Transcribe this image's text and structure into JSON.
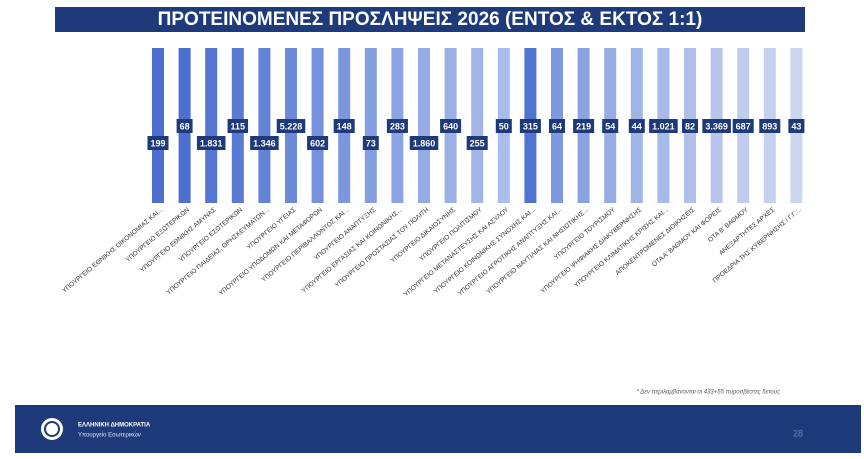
{
  "chart_data": {
    "type": "bar",
    "title": "ΠΡΟΤΕΙΝΟΜΕΝΕΣ ΠΡΟΣΛΗΨΕΙΣ 2026 (ΕΝΤΟΣ & ΕΚΤΟΣ 1:1)",
    "categories": [
      "ΥΠΟΥΡΓΕΙΟ ΕΘΝΙΚΗΣ ΟΙΚΟΝΟΜΙΑΣ ΚΑΙ...",
      "ΥΠΟΥΡΓΕΙΟ ΕΞΩΤΕΡΙΚΩΝ",
      "ΥΠΟΥΡΓΕΙΟ ΕΘΝΙΚΗΣ ΑΜΥΝΑΣ",
      "ΥΠΟΥΡΓΕΙΟ ΕΣΩΤΕΡΙΚΩΝ",
      "ΥΠΟΥΡΓΕΙΟ ΠΑΙΔΕΙΑΣ, ΘΡΗΣΚΕΥΜΑΤΩΝ...",
      "ΥΠΟΥΡΓΕΙΟ ΥΓΕΙΑΣ",
      "ΥΠΟΥΡΓΕΙΟ ΥΠΟΔΟΜΩΝ ΚΑΙ ΜΕΤΑΦΟΡΩΝ",
      "ΥΠΟΥΡΓΕΙΟ ΠΕΡΙΒΑΛΛΟΝΤΟΣ ΚΑΙ...",
      "ΥΠΟΥΡΓΕΙΟ ΑΝΑΠΤΥΞΗΣ",
      "ΥΠΟΥΡΓΕΙΟ ΕΡΓΑΣΙΑΣ ΚΑΙ ΚΟΙΝΩΝΙΚΗΣ...",
      "ΥΠΟΥΡΓΕΙΟ ΠΡΟΣΤΑΣΙΑΣ ΤΟΥ ΠΟΛΙΤΗ",
      "ΥΠΟΥΡΓΕΙΟ ΔΙΚΑΙΟΣΥΝΗΣ",
      "ΥΠΟΥΡΓΕΙΟ ΠΟΛΙΤΙΣΜΟΥ",
      "ΥΠΟΥΡΓΕΙΟ ΜΕΤΑΝΑΣΤΕΥΣΗΣ ΚΑΙ ΑΣΥΛΟΥ",
      "ΥΠΟΥΡΓΕΙΟ ΚΟΙΝΩΝΙΚΗΣ ΣΥΝΟΧΗΣ ΚΑΙ...",
      "ΥΠΟΥΡΓΕΙΟ ΑΓΡΟΤΙΚΗΣ ΑΝΑΠΤΥΞΗΣ ΚΑΙ...",
      "ΥΠΟΥΡΓΕΙΟ ΝΑΥΤΙΛΙΑΣ ΚΑΙ ΝΗΣΙΩΤΙΚΗΣ...",
      "ΥΠΟΥΡΓΕΙΟ ΤΟΥΡΙΣΜΟΥ",
      "ΥΠΟΥΡΓΕΙΟ ΨΗΦΙΑΚΗΣ ΔΙΑΚΥΒΕΡΝΗΣΗΣ",
      "ΥΠΟΥΡΓΕΙΟ ΚΛΙΜΑΤΙΚΗΣ ΚΡΙΣΗΣ ΚΑΙ...",
      "ΑΠΟΚΕΝΤΡΩΜΕΝΕΣ ΔΙΟΙΚΗΣΕΙΣ",
      "ΟΤΑ Α' ΒΑΘΜΟΥ ΚΑΙ ΦΟΡΕΙΣ",
      "ΟΤΑ Β' ΒΑΘΜΟΥ",
      "ΑΝΕΞΑΡΤΗΤΕΣ ΑΡΧΕΣ",
      "ΠΡΟΕΔΡΙΑ ΤΗΣ ΚΥΒΕΡΝΗΣΗΣ / Γ.Γ...."
    ],
    "values": [
      199,
      68,
      1831,
      115,
      1346,
      5228,
      602,
      148,
      73,
      283,
      1860,
      640,
      255,
      50,
      315,
      64,
      219,
      54,
      44,
      1021,
      82,
      3369,
      687,
      893,
      43
    ],
    "value_labels": [
      "199",
      "68",
      "1.831",
      "115",
      "1.346",
      "5.228",
      "602",
      "148",
      "73",
      "283",
      "1.860",
      "640",
      "255",
      "50",
      "315",
      "64",
      "219",
      "54",
      "44",
      "1.021",
      "82",
      "3.369",
      "687",
      "893",
      "43"
    ],
    "colors": [
      "#4e6fd0",
      "#4e6fd0",
      "#5475d2",
      "#5a7ad4",
      "#6482d6",
      "#6d8ad9",
      "#7591db",
      "#7c97dd",
      "#859edf",
      "#8ca4e1",
      "#94aae3",
      "#9bb0e5",
      "#a3b6e7",
      "#aabce9",
      "#5172d1",
      "#7f99de",
      "#8aa2e0",
      "#97ade4",
      "#a0b4e6",
      "#a8bae8",
      "#b0c0ea",
      "#b8c6ec",
      "#bfccee",
      "#c6d1f0",
      "#ccd6f1"
    ],
    "footnote": "* Δεν περιλαμβάνονται οι 433+55 πυροσβέστες 5ετούς",
    "footer": {
      "org": "ΕΛΛΗΝΙΚΗ ΔΗΜΟΚΡΑΤΙΑ",
      "ministry": "Υπουργείο Εσωτερικών",
      "page": "28"
    }
  }
}
